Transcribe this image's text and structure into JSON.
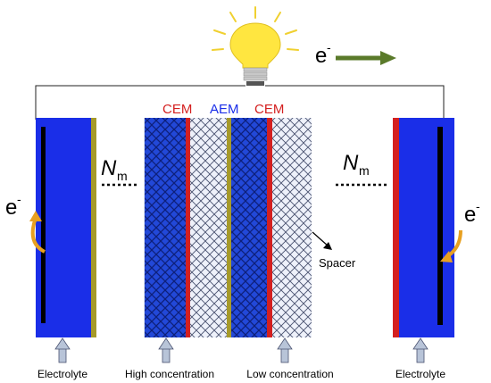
{
  "labels": {
    "membranes": [
      "CEM",
      "AEM",
      "CEM"
    ],
    "n_left": "N",
    "n_right": "N",
    "n_sub": "m",
    "electron_top": "e",
    "electron_left": "e",
    "electron_right": "e",
    "electron_sup": "-",
    "spacer": "Spacer",
    "electrolyte_left": "Electrolyte",
    "high_concentration": "High concentration",
    "low_concentration": "Low concentration",
    "electrolyte_right": "Electrolyte"
  },
  "colors": {
    "electrode_blue": "#1a2ee8",
    "cem_red": "#d42020",
    "aem_olive": "#a69a2a",
    "aem_label_blue": "#1a2ee8",
    "cem_label_red": "#d42020",
    "arrow_green": "#5a7a2a",
    "arrow_orange": "#e8a020",
    "bulb_yellow": "#ffe640",
    "input_arrow_gray": "#b8c4d8",
    "high_conc_pattern": "#2040c8",
    "low_conc_pattern": "#c0c8e0"
  }
}
